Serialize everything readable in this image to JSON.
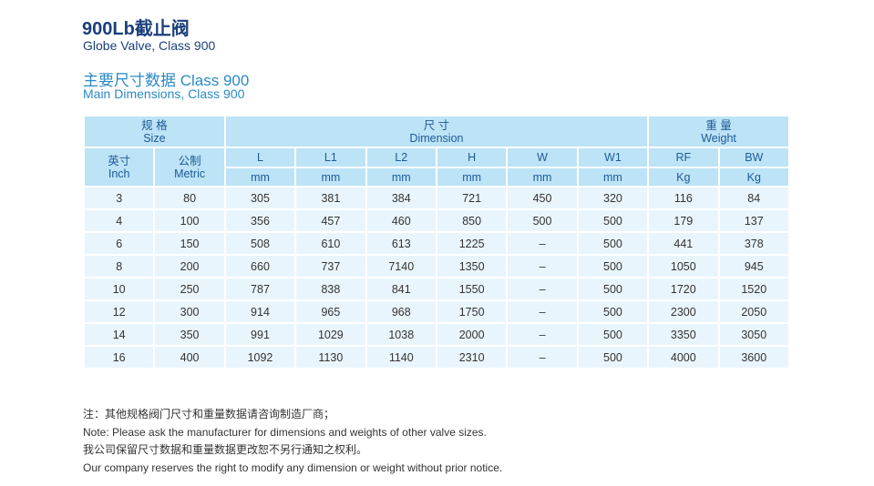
{
  "title_cn": "900Lb截止阀",
  "title_en": "Globe Valve, Class 900",
  "subtitle_cn": "主要尺寸数据 Class 900",
  "subtitle_en": "Main Dimensions, Class 900",
  "table": {
    "groups": [
      {
        "cn": "规 格",
        "en": "Size"
      },
      {
        "cn": "尺 寸",
        "en": "Dimension"
      },
      {
        "cn": "重 量",
        "en": "Weight"
      }
    ],
    "size_cols": [
      {
        "cn": "英寸",
        "en": "Inch"
      },
      {
        "cn": "公制",
        "en": "Metric"
      }
    ],
    "cols": [
      "L",
      "L1",
      "L2",
      "H",
      "W",
      "W1",
      "RF",
      "BW"
    ],
    "units": [
      "mm",
      "mm",
      "mm",
      "mm",
      "mm",
      "mm",
      "Kg",
      "Kg"
    ],
    "rows": [
      [
        "3",
        "80",
        "305",
        "381",
        "384",
        "721",
        "450",
        "320",
        "116",
        "84"
      ],
      [
        "4",
        "100",
        "356",
        "457",
        "460",
        "850",
        "500",
        "500",
        "179",
        "137"
      ],
      [
        "6",
        "150",
        "508",
        "610",
        "613",
        "1225",
        "–",
        "500",
        "441",
        "378"
      ],
      [
        "8",
        "200",
        "660",
        "737",
        "7140",
        "1350",
        "–",
        "500",
        "1050",
        "945"
      ],
      [
        "10",
        "250",
        "787",
        "838",
        "841",
        "1550",
        "–",
        "500",
        "1720",
        "1520"
      ],
      [
        "12",
        "300",
        "914",
        "965",
        "968",
        "1750",
        "–",
        "500",
        "2300",
        "2050"
      ],
      [
        "14",
        "350",
        "991",
        "1029",
        "1038",
        "2000",
        "–",
        "500",
        "3350",
        "3050"
      ],
      [
        "16",
        "400",
        "1092",
        "1130",
        "1140",
        "2310",
        "–",
        "500",
        "4000",
        "3600"
      ]
    ]
  },
  "notes": [
    "注：其他规格阀门尺寸和重量数据请咨询制造厂商；",
    "Note: Please ask the manufacturer for dimensions and weights of other valve sizes.",
    "我公司保留尺寸数据和重量数据更改恕不另行通知之权利。",
    "Our company reserves the right to modify any dimension or weight without prior notice."
  ]
}
